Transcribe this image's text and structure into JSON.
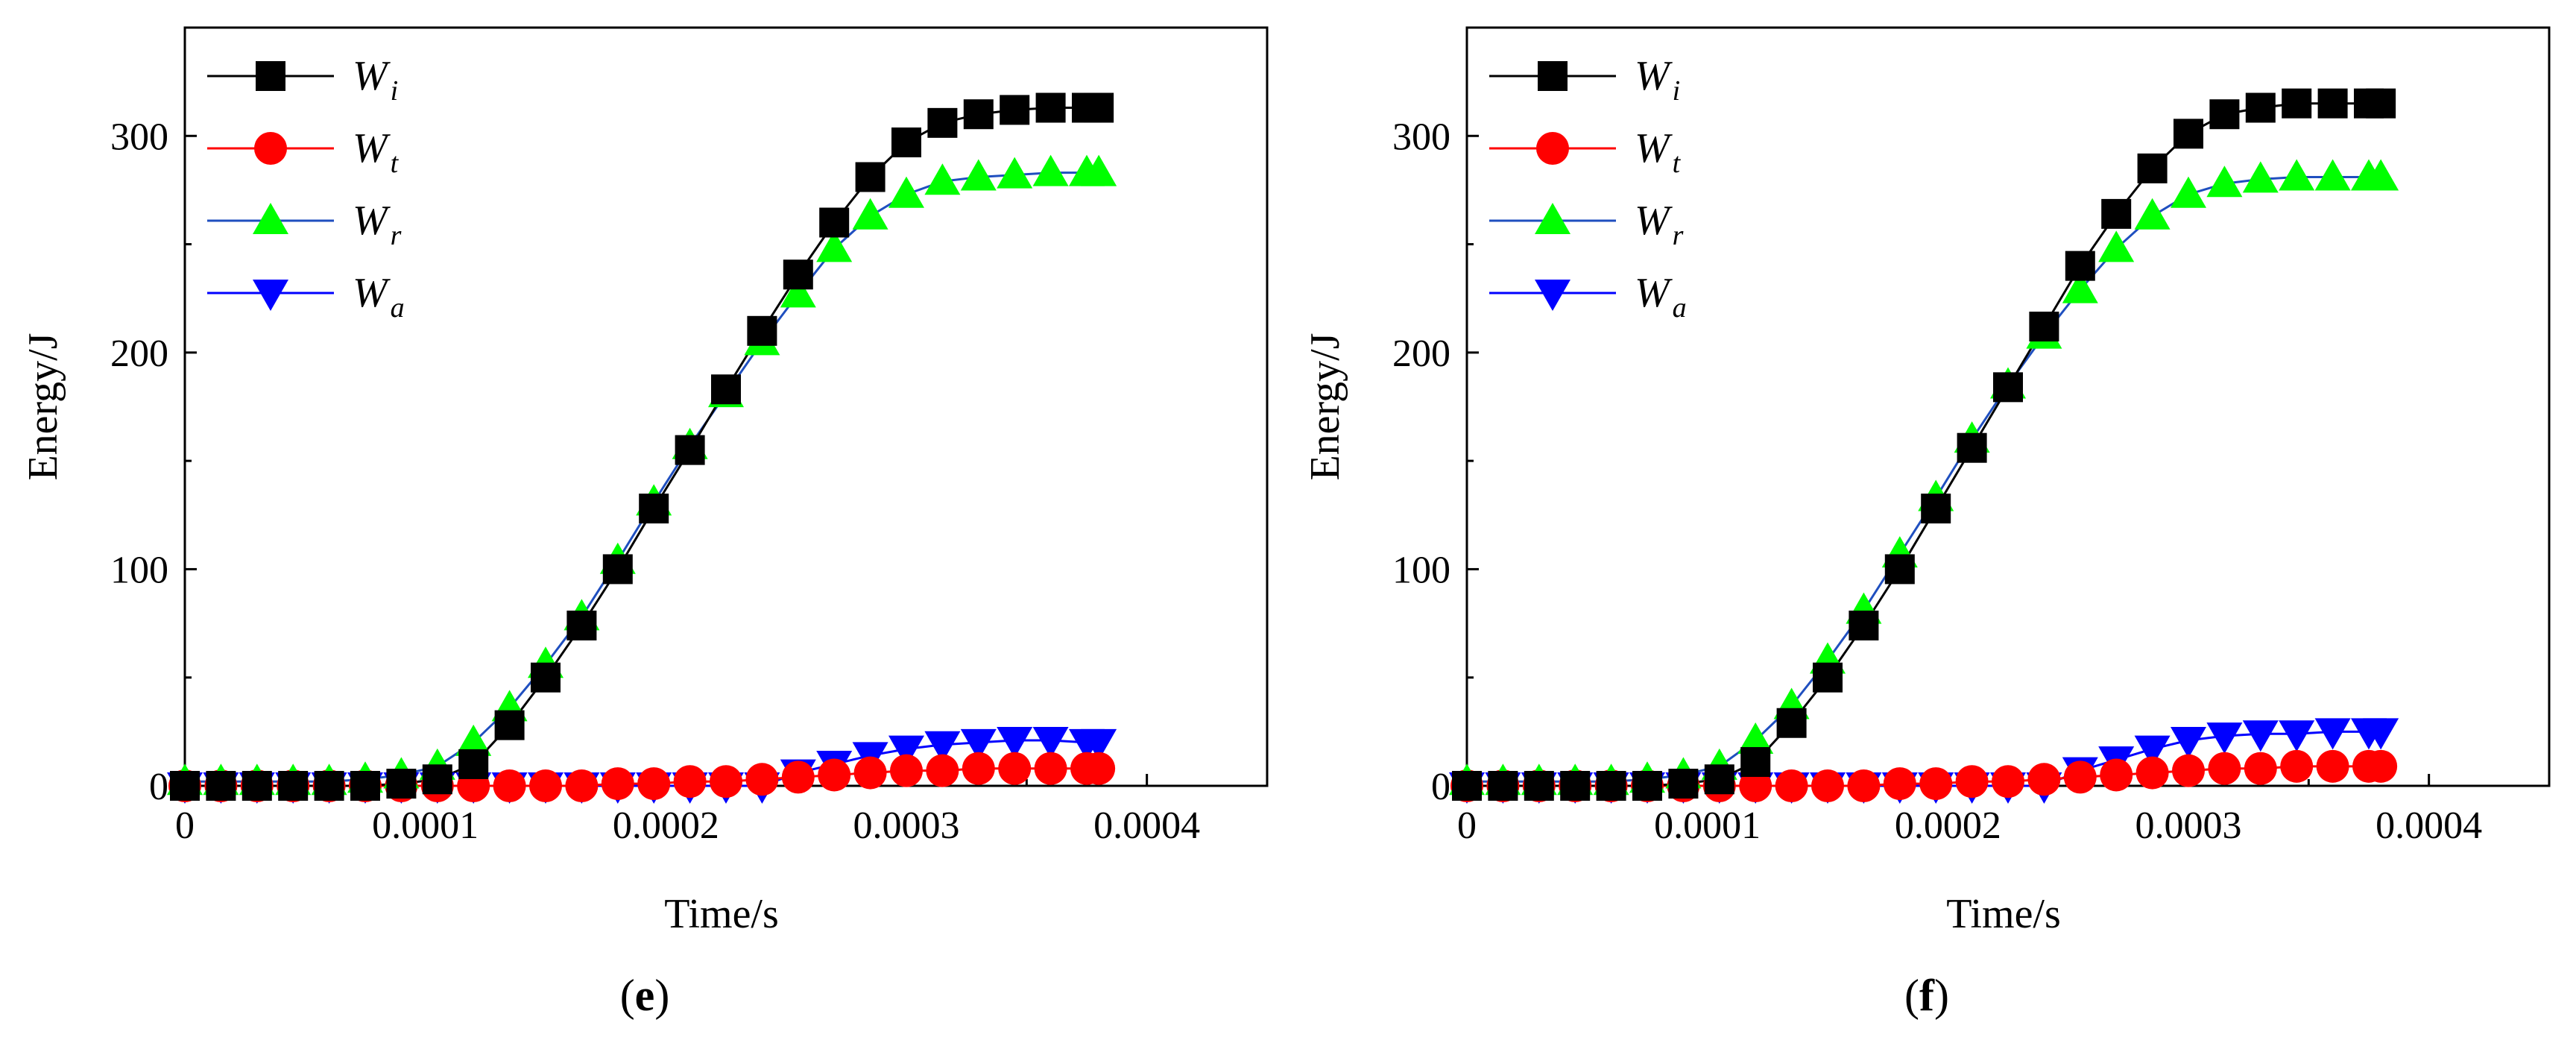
{
  "chart_data": [
    {
      "type": "line",
      "panel_label": "e",
      "xlabel": "Time/s",
      "ylabel": "Energy/J",
      "xlim": [
        0,
        0.00045
      ],
      "ylim": [
        0,
        350
      ],
      "xticks": [
        0,
        0.0001,
        0.0002,
        0.0003,
        0.0004
      ],
      "xtick_labels": [
        "0",
        "0.0001",
        "0.0002",
        "0.0003",
        "0.0004"
      ],
      "yticks": [
        0,
        100,
        200,
        300
      ],
      "ytick_labels": [
        "0",
        "100",
        "200",
        "300"
      ],
      "legend_position": "top-left",
      "x": [
        0,
        1.5e-05,
        3e-05,
        4.5e-05,
        6e-05,
        7.5e-05,
        9e-05,
        0.000105,
        0.00012,
        0.000135,
        0.00015,
        0.000165,
        0.00018,
        0.000195,
        0.00021,
        0.000225,
        0.00024,
        0.000255,
        0.00027,
        0.000285,
        0.0003,
        0.000315,
        0.00033,
        0.000345,
        0.00036,
        0.000375,
        0.00038
      ],
      "series": [
        {
          "name": "W",
          "sub": "i",
          "color": "#000000",
          "marker": "square",
          "values": [
            0,
            0,
            0,
            0,
            0,
            0,
            1,
            3,
            10,
            28,
            50,
            74,
            100,
            128,
            155,
            183,
            210,
            236,
            260,
            281,
            297,
            306,
            310,
            312,
            313,
            313,
            313
          ]
        },
        {
          "name": "W",
          "sub": "t",
          "color": "#ff0000",
          "marker": "circle",
          "values": [
            0,
            0,
            0,
            0,
            0,
            0,
            0,
            0,
            0,
            0,
            0,
            0,
            1,
            1,
            2,
            2,
            3,
            4,
            5,
            6,
            7,
            7,
            8,
            8,
            8,
            8,
            8
          ]
        },
        {
          "name": "W",
          "sub": "r",
          "color": "#00ff00",
          "marker": "triangle-up",
          "line_color": "#1f4fbf",
          "values": [
            2,
            2,
            2,
            2,
            2,
            3,
            5,
            9,
            20,
            36,
            56,
            78,
            104,
            131,
            157,
            181,
            205,
            227,
            248,
            263,
            273,
            279,
            281,
            282,
            283,
            283,
            283
          ]
        },
        {
          "name": "W",
          "sub": "a",
          "color": "#0000ff",
          "marker": "triangle-down",
          "values": [
            0,
            0,
            0,
            0,
            0,
            0,
            0,
            0,
            0,
            0,
            0,
            0,
            0,
            0,
            0,
            0,
            0,
            6,
            10,
            14,
            17,
            19,
            20,
            21,
            21,
            20,
            20
          ]
        }
      ]
    },
    {
      "type": "line",
      "panel_label": "f",
      "xlabel": "Time/s",
      "ylabel": "Energy/J",
      "xlim": [
        0,
        0.00045
      ],
      "ylim": [
        0,
        350
      ],
      "xticks": [
        0,
        0.0001,
        0.0002,
        0.0003,
        0.0004
      ],
      "xtick_labels": [
        "0",
        "0.0001",
        "0.0002",
        "0.0003",
        "0.0004"
      ],
      "yticks": [
        0,
        100,
        200,
        300
      ],
      "ytick_labels": [
        "0",
        "100",
        "200",
        "300"
      ],
      "legend_position": "top-left",
      "x": [
        0,
        1.5e-05,
        3e-05,
        4.5e-05,
        6e-05,
        7.5e-05,
        9e-05,
        0.000105,
        0.00012,
        0.000135,
        0.00015,
        0.000165,
        0.00018,
        0.000195,
        0.00021,
        0.000225,
        0.00024,
        0.000255,
        0.00027,
        0.000285,
        0.0003,
        0.000315,
        0.00033,
        0.000345,
        0.00036,
        0.000375,
        0.00038
      ],
      "series": [
        {
          "name": "W",
          "sub": "i",
          "color": "#000000",
          "marker": "square",
          "values": [
            0,
            0,
            0,
            0,
            0,
            0,
            1,
            3,
            11,
            29,
            50,
            74,
            100,
            128,
            156,
            184,
            212,
            240,
            264,
            285,
            301,
            310,
            313,
            315,
            315,
            315,
            315
          ]
        },
        {
          "name": "W",
          "sub": "t",
          "color": "#ff0000",
          "marker": "circle",
          "values": [
            0,
            0,
            0,
            0,
            0,
            0,
            0,
            0,
            0,
            0,
            0,
            0,
            1,
            1,
            2,
            2,
            3,
            4,
            5,
            6,
            7,
            8,
            8,
            9,
            9,
            9,
            9
          ]
        },
        {
          "name": "W",
          "sub": "r",
          "color": "#00ff00",
          "marker": "triangle-up",
          "line_color": "#1f4fbf",
          "values": [
            2,
            2,
            2,
            2,
            2,
            3,
            5,
            9,
            21,
            37,
            58,
            81,
            107,
            133,
            160,
            185,
            208,
            229,
            248,
            263,
            273,
            278,
            280,
            281,
            281,
            281,
            281
          ]
        },
        {
          "name": "W",
          "sub": "a",
          "color": "#0000ff",
          "marker": "triangle-down",
          "values": [
            0,
            0,
            0,
            0,
            0,
            0,
            0,
            0,
            0,
            0,
            0,
            0,
            0,
            0,
            0,
            0,
            0,
            7,
            12,
            17,
            21,
            23,
            24,
            24,
            25,
            25,
            25
          ]
        }
      ]
    }
  ]
}
